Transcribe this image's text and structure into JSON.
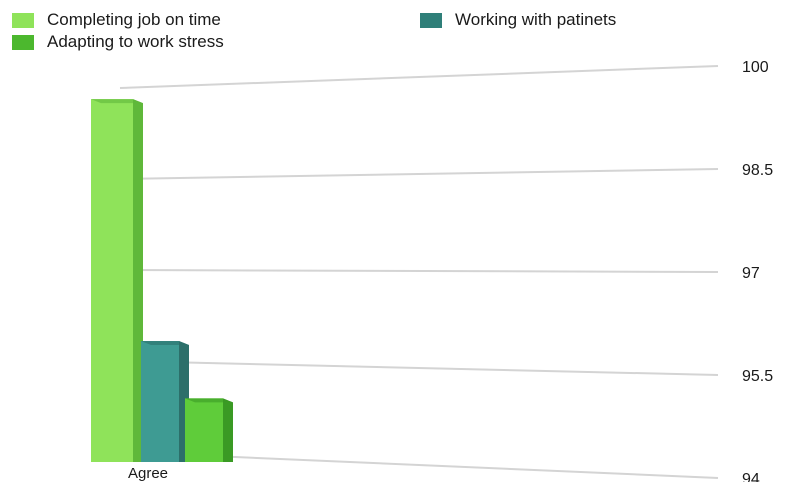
{
  "chart_data": {
    "type": "bar",
    "categories": [
      "Agree"
    ],
    "series": [
      {
        "name": "Completing job on time",
        "values": [
          99.7
        ],
        "color": "#8fe35a"
      },
      {
        "name": "Working with patinets",
        "values": [
          95.9
        ],
        "color": "#3e9b93"
      },
      {
        "name": "Adapting to work stress",
        "values": [
          95.0
        ],
        "color": "#5fcc3a"
      }
    ],
    "yticks": [
      "100",
      "98.5",
      "97",
      "95.5",
      "94"
    ],
    "ylim": [
      94,
      100
    ],
    "grid": true,
    "legend_position": "top"
  }
}
